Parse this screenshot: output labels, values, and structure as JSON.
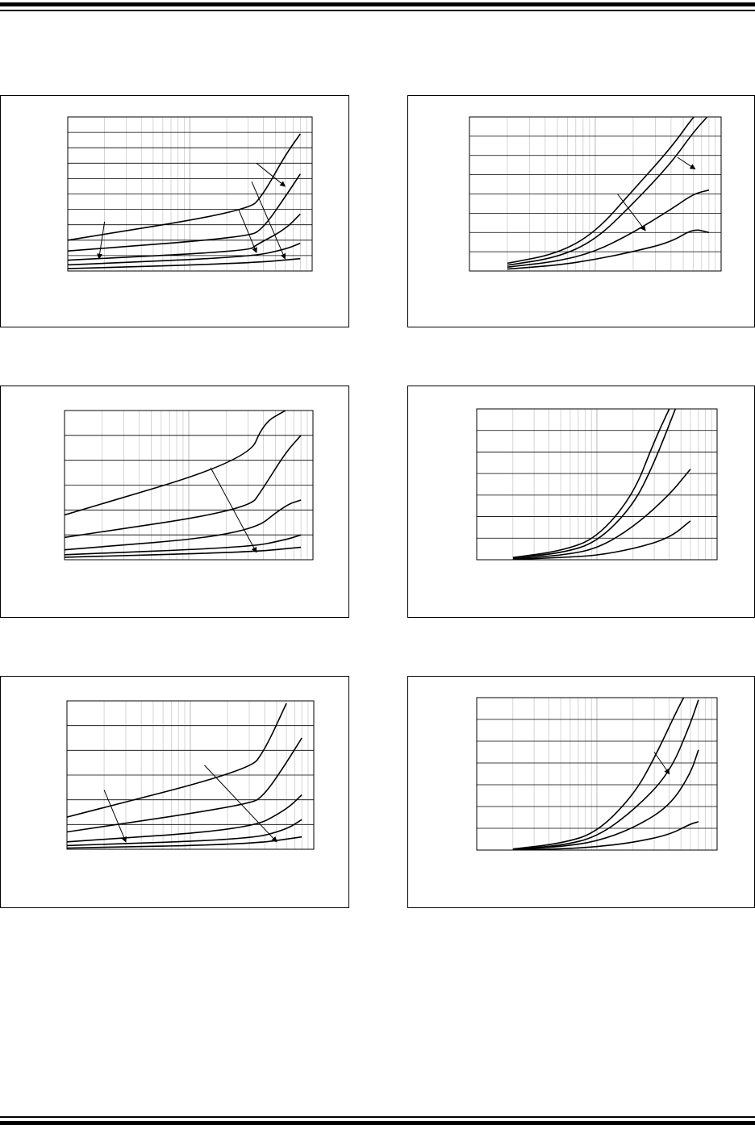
{
  "chart_data": [
    {
      "type": "line",
      "x_scale": "log",
      "xlim": [
        1,
        100
      ],
      "ylim": [
        0,
        10
      ],
      "series": [
        {
          "x": [
            1,
            30,
            40,
            60,
            80
          ],
          "values": [
            2.0,
            3.9,
            5.0,
            7.5,
            8.9
          ]
        },
        {
          "x": [
            1,
            30,
            40,
            60,
            80
          ],
          "values": [
            1.3,
            2.2,
            2.8,
            4.8,
            6.3
          ]
        },
        {
          "x": [
            1,
            30,
            35,
            60,
            80
          ],
          "values": [
            0.7,
            1.3,
            1.7,
            2.7,
            3.7
          ]
        },
        {
          "x": [
            1,
            30,
            60,
            80
          ],
          "values": [
            0.4,
            0.9,
            1.4,
            1.8
          ]
        },
        {
          "x": [
            1,
            30,
            80
          ],
          "values": [
            0.15,
            0.5,
            0.8
          ]
        }
      ],
      "annotations": [
        {
          "from": [
            2,
            3.2
          ],
          "to": [
            1.8,
            0.8
          ]
        },
        {
          "from": [
            25,
            4.0
          ],
          "to": [
            35,
            1.2
          ]
        },
        {
          "from": [
            32,
            5.8
          ],
          "to": [
            60,
            0.8
          ]
        },
        {
          "from": [
            35,
            7.0
          ],
          "to": [
            60,
            5.5
          ]
        }
      ]
    },
    {
      "type": "line",
      "x_scale": "log",
      "xlim": [
        1,
        100
      ],
      "ylim": [
        0,
        8
      ],
      "series": [
        {
          "x": [
            2,
            5,
            10,
            20,
            40,
            60,
            70
          ],
          "values": [
            0.4,
            0.9,
            2.0,
            4.2,
            6.4,
            8.0,
            8.4
          ]
        },
        {
          "x": [
            2,
            5,
            10,
            20,
            40,
            60,
            80
          ],
          "values": [
            0.3,
            0.7,
            1.6,
            3.5,
            5.6,
            7.2,
            8.1
          ]
        },
        {
          "x": [
            2,
            5,
            10,
            20,
            40,
            60,
            80
          ],
          "values": [
            0.2,
            0.5,
            1.0,
            2.0,
            3.2,
            4.0,
            4.2
          ]
        },
        {
          "x": [
            2,
            5,
            10,
            20,
            40,
            60,
            80
          ],
          "values": [
            0.1,
            0.3,
            0.6,
            1.0,
            1.5,
            2.2,
            2.0
          ]
        }
      ],
      "annotations": [
        {
          "from": [
            45,
            5.9
          ],
          "to": [
            62,
            5.3
          ]
        },
        {
          "from": [
            15,
            4.0
          ],
          "to": [
            25,
            2.1
          ]
        }
      ]
    },
    {
      "type": "line",
      "x_scale": "log",
      "xlim": [
        1,
        100
      ],
      "ylim": [
        0,
        6
      ],
      "series": [
        {
          "x": [
            1,
            30,
            40,
            60
          ],
          "values": [
            1.8,
            4.0,
            5.5,
            6.0
          ]
        },
        {
          "x": [
            1,
            30,
            40,
            60,
            80
          ],
          "values": [
            0.9,
            2.0,
            2.9,
            4.3,
            5.0
          ]
        },
        {
          "x": [
            1,
            30,
            60,
            80
          ],
          "values": [
            0.4,
            1.0,
            2.2,
            2.4
          ]
        },
        {
          "x": [
            1,
            30,
            60,
            80
          ],
          "values": [
            0.2,
            0.5,
            0.8,
            1.0
          ]
        },
        {
          "x": [
            1,
            30,
            80
          ],
          "values": [
            0.1,
            0.3,
            0.5
          ]
        }
      ],
      "annotations": [
        {
          "from": [
            15,
            3.7
          ],
          "to": [
            35,
            0.3
          ]
        }
      ]
    },
    {
      "type": "line",
      "x_scale": "log",
      "xlim": [
        1,
        100
      ],
      "ylim": [
        0,
        7
      ],
      "series": [
        {
          "x": [
            2,
            5,
            10,
            20,
            30,
            40
          ],
          "values": [
            0.1,
            0.4,
            1.0,
            3.0,
            5.5,
            7.0
          ]
        },
        {
          "x": [
            2,
            5,
            10,
            20,
            30,
            45
          ],
          "values": [
            0.1,
            0.3,
            0.8,
            2.5,
            4.5,
            7.0
          ]
        },
        {
          "x": [
            2,
            5,
            10,
            20,
            40,
            60
          ],
          "values": [
            0.05,
            0.2,
            0.5,
            1.5,
            3.0,
            4.2
          ]
        },
        {
          "x": [
            2,
            5,
            10,
            20,
            40,
            60
          ],
          "values": [
            0.02,
            0.1,
            0.2,
            0.5,
            1.0,
            1.8
          ]
        }
      ],
      "annotations": []
    },
    {
      "type": "line",
      "x_scale": "log",
      "xlim": [
        1,
        100
      ],
      "ylim": [
        0,
        6
      ],
      "series": [
        {
          "x": [
            1,
            30,
            40,
            60
          ],
          "values": [
            1.3,
            3.2,
            4.0,
            5.9
          ]
        },
        {
          "x": [
            1,
            30,
            40,
            60,
            80
          ],
          "values": [
            0.7,
            1.8,
            2.2,
            3.5,
            4.5
          ]
        },
        {
          "x": [
            1,
            30,
            60,
            80
          ],
          "values": [
            0.3,
            0.8,
            1.6,
            2.2
          ]
        },
        {
          "x": [
            1,
            30,
            60,
            80
          ],
          "values": [
            0.15,
            0.4,
            0.8,
            1.2
          ]
        },
        {
          "x": [
            1,
            30,
            80
          ],
          "values": [
            0.05,
            0.2,
            0.5
          ]
        }
      ],
      "annotations": [
        {
          "from": [
            2,
            2.4
          ],
          "to": [
            3,
            0.3
          ]
        },
        {
          "from": [
            13,
            3.4
          ],
          "to": [
            50,
            0.3
          ]
        }
      ]
    },
    {
      "type": "line",
      "x_scale": "log",
      "xlim": [
        1,
        100
      ],
      "ylim": [
        0,
        7
      ],
      "series": [
        {
          "x": [
            2,
            5,
            10,
            20,
            30,
            50,
            60
          ],
          "values": [
            0.05,
            0.3,
            0.8,
            2.5,
            4.2,
            6.8,
            7.5
          ]
        },
        {
          "x": [
            2,
            5,
            10,
            20,
            40,
            60,
            70
          ],
          "values": [
            0.04,
            0.2,
            0.6,
            1.8,
            3.5,
            5.8,
            6.9
          ]
        },
        {
          "x": [
            2,
            5,
            10,
            20,
            40,
            60,
            70
          ],
          "values": [
            0.03,
            0.15,
            0.4,
            1.0,
            2.0,
            3.5,
            4.6
          ]
        },
        {
          "x": [
            2,
            5,
            10,
            20,
            40,
            60,
            70
          ],
          "values": [
            0.01,
            0.05,
            0.15,
            0.35,
            0.7,
            1.2,
            1.3
          ]
        }
      ],
      "annotations": [
        {
          "from": [
            30,
            4.5
          ],
          "to": [
            40,
            3.5
          ]
        }
      ]
    }
  ]
}
